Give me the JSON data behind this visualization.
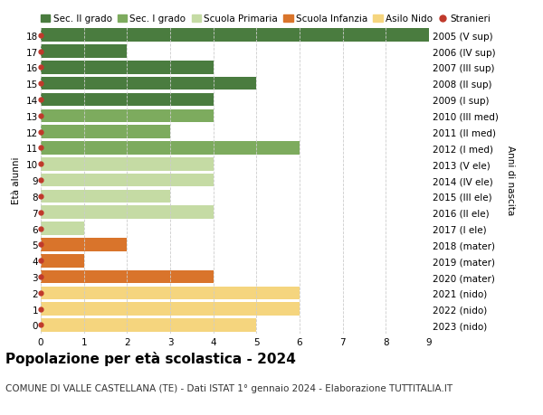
{
  "ages": [
    18,
    17,
    16,
    15,
    14,
    13,
    12,
    11,
    10,
    9,
    8,
    7,
    6,
    5,
    4,
    3,
    2,
    1,
    0
  ],
  "right_labels": [
    "2005 (V sup)",
    "2006 (IV sup)",
    "2007 (III sup)",
    "2008 (II sup)",
    "2009 (I sup)",
    "2010 (III med)",
    "2011 (II med)",
    "2012 (I med)",
    "2013 (V ele)",
    "2014 (IV ele)",
    "2015 (III ele)",
    "2016 (II ele)",
    "2017 (I ele)",
    "2018 (mater)",
    "2019 (mater)",
    "2020 (mater)",
    "2021 (nido)",
    "2022 (nido)",
    "2023 (nido)"
  ],
  "values": [
    9,
    2,
    4,
    5,
    4,
    4,
    3,
    6,
    4,
    4,
    3,
    4,
    1,
    2,
    1,
    4,
    6,
    6,
    5
  ],
  "categories": {
    "Sec. II grado": {
      "ages": [
        18,
        17,
        16,
        15,
        14
      ],
      "color": "#4a7c3f"
    },
    "Sec. I grado": {
      "ages": [
        13,
        12,
        11
      ],
      "color": "#7dab5e"
    },
    "Scuola Primaria": {
      "ages": [
        10,
        9,
        8,
        7,
        6
      ],
      "color": "#c5dba4"
    },
    "Scuola Infanzia": {
      "ages": [
        5,
        4,
        3
      ],
      "color": "#d9742b"
    },
    "Asilo Nido": {
      "ages": [
        2,
        1,
        0
      ],
      "color": "#f5d57e"
    }
  },
  "stranieri_dot_color": "#c0392b",
  "title": "Popolazione per età scolastica - 2024",
  "subtitle": "COMUNE DI VALLE CASTELLANA (TE) - Dati ISTAT 1° gennaio 2024 - Elaborazione TUTTITALIA.IT",
  "ylabel_left": "Età alunni",
  "ylabel_right": "Anni di nascita",
  "xlim": [
    0,
    9
  ],
  "xticks": [
    0,
    1,
    2,
    3,
    4,
    5,
    6,
    7,
    8,
    9
  ],
  "bg_color": "#ffffff",
  "legend_items": [
    "Sec. II grado",
    "Sec. I grado",
    "Scuola Primaria",
    "Scuola Infanzia",
    "Asilo Nido",
    "Stranieri"
  ],
  "legend_colors": [
    "#4a7c3f",
    "#7dab5e",
    "#c5dba4",
    "#d9742b",
    "#f5d57e",
    "#c0392b"
  ],
  "title_fontsize": 11,
  "subtitle_fontsize": 7.5,
  "tick_fontsize": 7.5,
  "legend_fontsize": 7.5,
  "bar_height": 0.82,
  "grid_color": "#cccccc"
}
